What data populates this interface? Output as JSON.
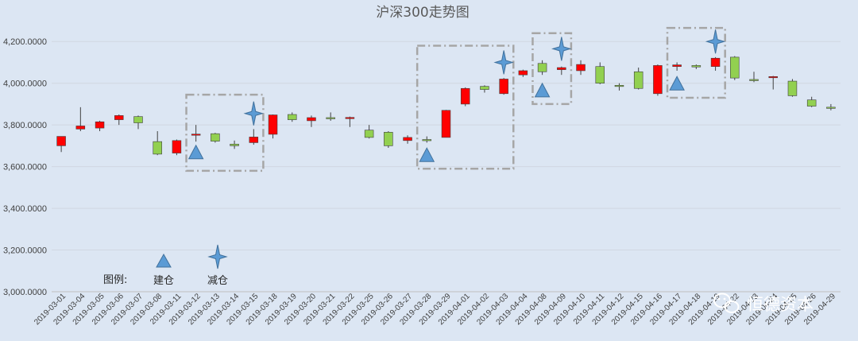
{
  "chart_data": {
    "type": "candlestick",
    "title": "沪深300走势图",
    "y_ticks": [
      "3,000.0000",
      "3,200.0000",
      "3,400.0000",
      "3,600.0000",
      "3,800.0000",
      "4,000.0000",
      "4,200.0000"
    ],
    "ylim": [
      3000,
      4250
    ],
    "grid": true,
    "up_color": "#ff0000",
    "down_color": "#92d050",
    "categories": [
      "2019-03-01",
      "2019-03-04",
      "2019-03-05",
      "2019-03-06",
      "2019-03-07",
      "2019-03-08",
      "2019-03-11",
      "2019-03-12",
      "2019-03-13",
      "2019-03-14",
      "2019-03-15",
      "2019-03-18",
      "2019-03-19",
      "2019-03-20",
      "2019-03-21",
      "2019-03-22",
      "2019-03-25",
      "2019-03-26",
      "2019-03-27",
      "2019-03-28",
      "2019-03-29",
      "2019-04-01",
      "2019-04-02",
      "2019-04-03",
      "2019-04-04",
      "2019-04-08",
      "2019-04-09",
      "2019-04-10",
      "2019-04-11",
      "2019-04-12",
      "2019-04-15",
      "2019-04-16",
      "2019-04-17",
      "2019-04-18",
      "2019-04-19",
      "2019-04-22",
      "2019-04-23",
      "2019-04-24",
      "2019-04-25",
      "2019-04-26",
      "2019-04-29"
    ],
    "ohlc": [
      [
        3700,
        3745,
        3670,
        3745
      ],
      [
        3780,
        3795,
        3770,
        3885
      ],
      [
        3785,
        3815,
        3770,
        3820
      ],
      [
        3825,
        3845,
        3800,
        3850
      ],
      [
        3840,
        3810,
        3780,
        3845
      ],
      [
        3720,
        3660,
        3655,
        3770
      ],
      [
        3665,
        3725,
        3655,
        3730
      ],
      [
        3752,
        3756,
        3720,
        3800
      ],
      [
        3758,
        3722,
        3715,
        3762
      ],
      [
        3708,
        3700,
        3685,
        3725
      ],
      [
        3715,
        3742,
        3705,
        3780
      ],
      [
        3755,
        3848,
        3735,
        3850
      ],
      [
        3850,
        3825,
        3815,
        3860
      ],
      [
        3820,
        3835,
        3790,
        3845
      ],
      [
        3835,
        3832,
        3820,
        3860
      ],
      [
        3830,
        3836,
        3790,
        3840
      ],
      [
        3775,
        3740,
        3735,
        3800
      ],
      [
        3765,
        3700,
        3690,
        3770
      ],
      [
        3725,
        3740,
        3710,
        3750
      ],
      [
        3730,
        3728,
        3715,
        3745
      ],
      [
        3740,
        3870,
        3740,
        3872
      ],
      [
        3900,
        3975,
        3890,
        3980
      ],
      [
        3985,
        3970,
        3955,
        3990
      ],
      [
        3950,
        4020,
        3945,
        4025
      ],
      [
        4040,
        4060,
        4030,
        4065
      ],
      [
        4095,
        4055,
        4040,
        4110
      ],
      [
        4065,
        4075,
        4040,
        4080
      ],
      [
        4060,
        4090,
        4040,
        4110
      ],
      [
        4080,
        4000,
        3995,
        4100
      ],
      [
        3990,
        3988,
        3965,
        4000
      ],
      [
        4055,
        3975,
        3970,
        4075
      ],
      [
        3950,
        4085,
        3940,
        4090
      ],
      [
        4080,
        4088,
        4060,
        4100
      ],
      [
        4085,
        4078,
        4068,
        4090
      ],
      [
        4080,
        4120,
        4060,
        4125
      ],
      [
        4125,
        4025,
        4015,
        4130
      ],
      [
        4018,
        4015,
        4005,
        4055
      ],
      [
        4030,
        4032,
        3970,
        4035
      ],
      [
        4010,
        3940,
        3935,
        4020
      ],
      [
        3920,
        3890,
        3885,
        3935
      ],
      [
        3885,
        3880,
        3870,
        3900
      ]
    ],
    "legend": {
      "label": "图例:",
      "items": [
        {
          "name": "建仓",
          "marker": "triangle",
          "color": "#5b9bd5"
        },
        {
          "name": "减仓",
          "marker": "star4",
          "color": "#5b9bd5"
        }
      ]
    },
    "annotations": [
      {
        "type": "box",
        "from": "2019-03-12",
        "to": "2019-03-15",
        "ymin": 3580,
        "ymax": 3945
      },
      {
        "type": "box",
        "from": "2019-03-28",
        "to": "2019-04-03",
        "ymin": 3590,
        "ymax": 4180
      },
      {
        "type": "box",
        "from": "2019-04-08",
        "to": "2019-04-09",
        "ymin": 3900,
        "ymax": 4240
      },
      {
        "type": "box",
        "from": "2019-04-17",
        "to": "2019-04-19",
        "ymin": 3930,
        "ymax": 4265
      },
      {
        "type": "marker",
        "marker": "triangle",
        "at": "2019-03-12",
        "y": 3668
      },
      {
        "type": "marker",
        "marker": "star4",
        "at": "2019-03-15",
        "y": 3855
      },
      {
        "type": "marker",
        "marker": "triangle",
        "at": "2019-03-28",
        "y": 3655
      },
      {
        "type": "marker",
        "marker": "star4",
        "at": "2019-04-03",
        "y": 4100
      },
      {
        "type": "marker",
        "marker": "triangle",
        "at": "2019-04-08",
        "y": 3965
      },
      {
        "type": "marker",
        "marker": "star4",
        "at": "2019-04-09",
        "y": 4165
      },
      {
        "type": "marker",
        "marker": "triangle",
        "at": "2019-04-17",
        "y": 3998
      },
      {
        "type": "marker",
        "marker": "star4",
        "at": "2019-04-19",
        "y": 4200
      }
    ]
  },
  "watermark": {
    "text": "恒德资本",
    "icon": "wechat-icon"
  }
}
